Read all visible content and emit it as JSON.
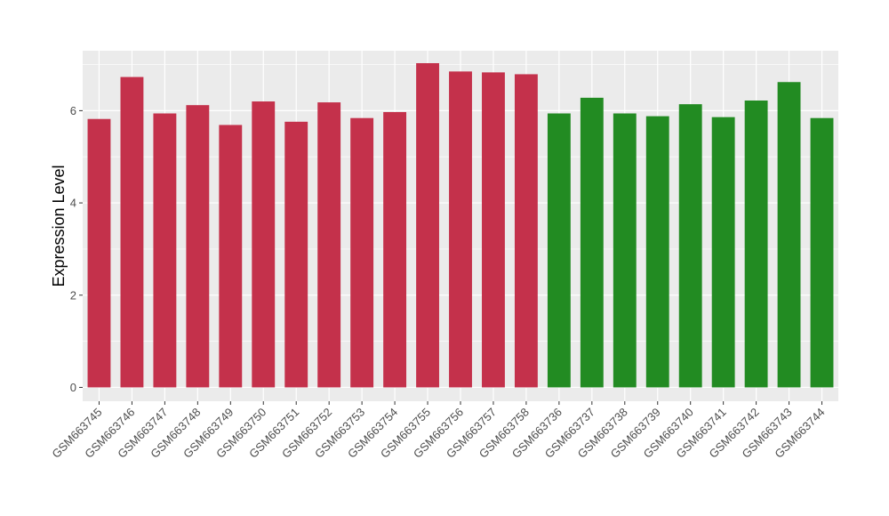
{
  "chart_data": {
    "type": "bar",
    "title": "",
    "xlabel": "",
    "ylabel": "Expression Level",
    "ylim": [
      -0.3,
      7.3
    ],
    "yticks": [
      0,
      2,
      4,
      6
    ],
    "grid": true,
    "legend": "none",
    "panel_background": "#ebebeb",
    "categories": [
      "GSM663745",
      "GSM663746",
      "GSM663747",
      "GSM663748",
      "GSM663749",
      "GSM663750",
      "GSM663751",
      "GSM663752",
      "GSM663753",
      "GSM663754",
      "GSM663755",
      "GSM663756",
      "GSM663757",
      "GSM663758",
      "GSM663736",
      "GSM663737",
      "GSM663738",
      "GSM663739",
      "GSM663740",
      "GSM663741",
      "GSM663742",
      "GSM663743",
      "GSM663744"
    ],
    "values": [
      5.82,
      6.73,
      5.94,
      6.12,
      5.69,
      6.2,
      5.76,
      6.18,
      5.84,
      5.97,
      7.03,
      6.85,
      6.83,
      6.79,
      5.94,
      6.28,
      5.94,
      5.88,
      6.14,
      5.86,
      6.22,
      6.62,
      5.84
    ],
    "colors": [
      "#c4314b",
      "#c4314b",
      "#c4314b",
      "#c4314b",
      "#c4314b",
      "#c4314b",
      "#c4314b",
      "#c4314b",
      "#c4314b",
      "#c4314b",
      "#c4314b",
      "#c4314b",
      "#c4314b",
      "#c4314b",
      "#228b22",
      "#228b22",
      "#228b22",
      "#228b22",
      "#228b22",
      "#228b22",
      "#228b22",
      "#228b22",
      "#228b22"
    ]
  }
}
